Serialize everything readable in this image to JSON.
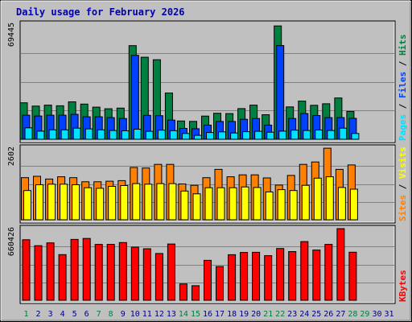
{
  "chart_data": {
    "type": "bar",
    "title": "Daily usage for February 2026",
    "days": [
      "1",
      "2",
      "3",
      "4",
      "5",
      "6",
      "7",
      "8",
      "9",
      "10",
      "11",
      "12",
      "13",
      "14",
      "15",
      "16",
      "17",
      "18",
      "19",
      "20",
      "21",
      "22",
      "23",
      "24",
      "25",
      "26",
      "27",
      "28",
      "29",
      "30",
      "31"
    ],
    "weekend_days": [
      "1",
      "7",
      "8",
      "14",
      "15",
      "21",
      "22",
      "28",
      "29"
    ],
    "colors": {
      "hits": "#008040",
      "files": "#0040ff",
      "pages": "#00e0ff",
      "visits": "#ff8000",
      "sites": "#ffff00",
      "kbytes": "#ff0000",
      "weekday_label": "#000080",
      "weekend_label": "#008040",
      "title": "#0000b0",
      "background": "#c0c0c0"
    },
    "panels": [
      {
        "id": "hits-files-pages",
        "ymax_label": "69445",
        "ymax": 69445,
        "legend": [
          {
            "text": "Pages",
            "color": "#00e0ff"
          },
          {
            "text": " / ",
            "color": "#000000"
          },
          {
            "text": "Files",
            "color": "#0040ff"
          },
          {
            "text": " / ",
            "color": "#000000"
          },
          {
            "text": "Hits",
            "color": "#008040"
          }
        ],
        "series": [
          {
            "name": "Hits",
            "color": "#008040",
            "values": [
              22000,
              20000,
              20600,
              20200,
              22600,
              21200,
              19400,
              18400,
              18800,
              56500,
              49500,
              48000,
              27900,
              11000,
              10800,
              14000,
              15700,
              15500,
              18500,
              20600,
              14800,
              68400,
              19500,
              23000,
              20500,
              21400,
              24900,
              16800,
              null,
              null,
              null
            ]
          },
          {
            "name": "Files",
            "color": "#0040ff",
            "values": [
              16000,
              15500,
              16000,
              16000,
              16500,
              15000,
              15000,
              14500,
              14000,
              52100,
              15900,
              15700,
              13000,
              8000,
              7800,
              10000,
              12200,
              12200,
              13500,
              14000,
              10000,
              58000,
              14000,
              17000,
              15800,
              14500,
              14500,
              14100,
              null,
              null,
              null
            ]
          },
          {
            "name": "Pages",
            "color": "#00e0ff",
            "values": [
              9800,
              7800,
              8600,
              8600,
              9600,
              9200,
              8600,
              8200,
              8000,
              9000,
              7700,
              8400,
              8100,
              6400,
              5300,
              7000,
              7400,
              6700,
              7500,
              7700,
              7200,
              7800,
              8400,
              8200,
              8500,
              8200,
              9600,
              6400,
              null,
              null,
              null
            ]
          }
        ]
      },
      {
        "id": "visits-sites",
        "ymax_label": "2602",
        "ymax": 2602,
        "legend": [
          {
            "text": "Sites",
            "color": "#ff8000"
          },
          {
            "text": " / ",
            "color": "#000000"
          },
          {
            "text": "Visits",
            "color": "#ffff00"
          }
        ],
        "series": [
          {
            "name": "Visits",
            "color": "#ff8000",
            "values": [
              1530,
              1580,
              1480,
              1560,
              1530,
              1380,
              1380,
              1400,
              1420,
              1900,
              1880,
              2010,
              2010,
              1300,
              1250,
              1530,
              1830,
              1560,
              1630,
              1630,
              1520,
              1260,
              1610,
              2010,
              2100,
              2600,
              1830,
              1990,
              null,
              null,
              null
            ]
          },
          {
            "name": "Sites",
            "color": "#ffff00",
            "values": [
              1150,
              1360,
              1380,
              1380,
              1360,
              1250,
              1230,
              1300,
              1330,
              1400,
              1380,
              1400,
              1400,
              1130,
              1030,
              1250,
              1250,
              1250,
              1280,
              1260,
              1100,
              1180,
              1150,
              1340,
              1600,
              1650,
              1260,
              1200,
              null,
              null,
              null
            ]
          }
        ]
      },
      {
        "id": "kbytes",
        "ymax_label": "660426",
        "ymax": 660426,
        "legend": [
          {
            "text": "KBytes",
            "color": "#ff0000"
          }
        ],
        "series": [
          {
            "name": "KBytes",
            "color": "#ff0000",
            "values": [
              558000,
              503000,
              529000,
              421000,
              561000,
              570000,
              515000,
              516000,
              532000,
              490000,
              475000,
              431000,
              519000,
              151000,
              134000,
              368000,
              311000,
              420000,
              441000,
              442000,
              411000,
              477000,
              449000,
              541000,
              463000,
              515000,
              660426,
              443000,
              null,
              null,
              null
            ]
          }
        ]
      }
    ],
    "grid": true
  }
}
